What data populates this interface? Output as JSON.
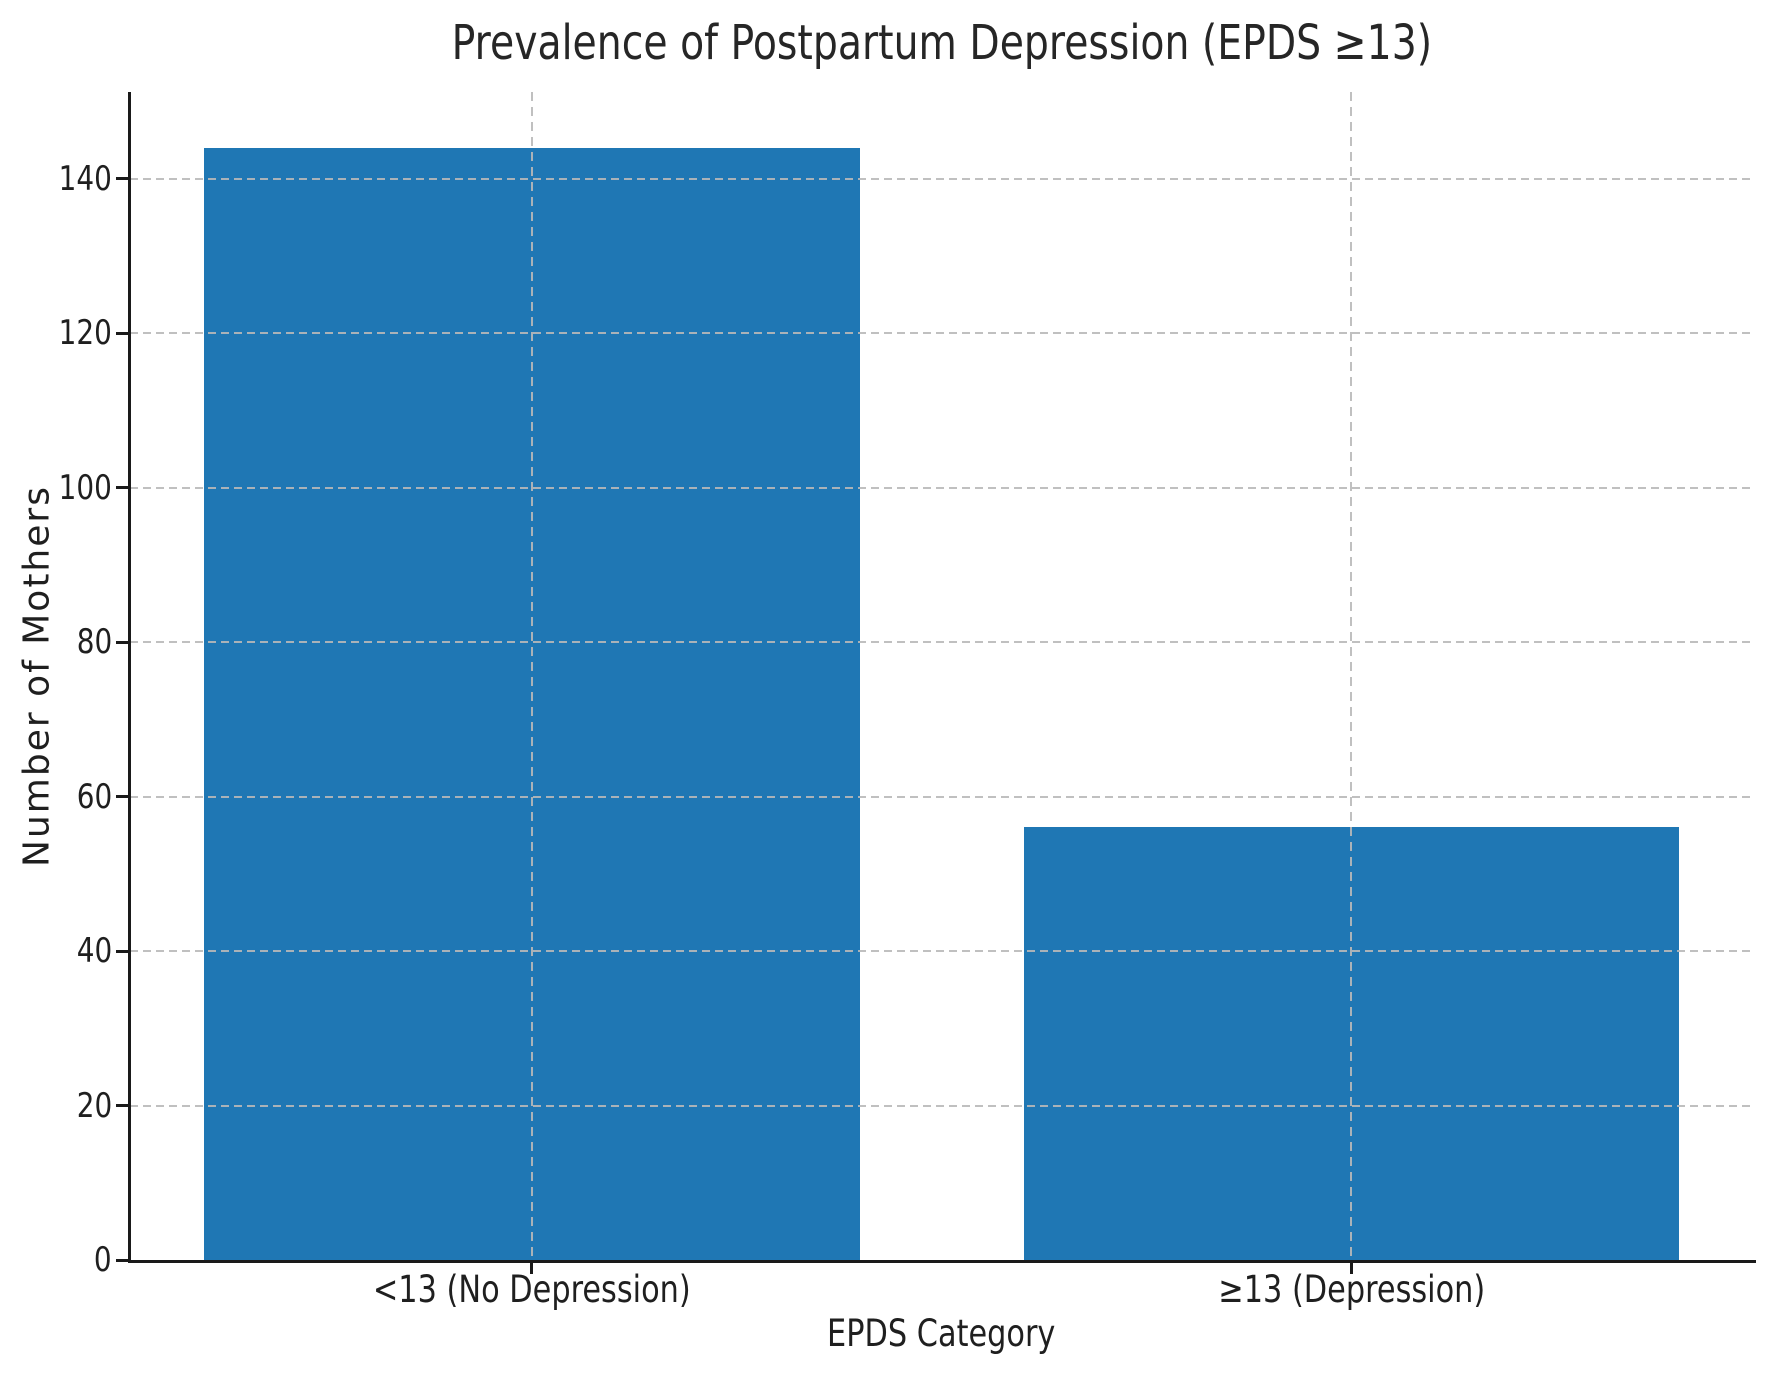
{
  "chart_data": {
    "type": "bar",
    "title": "Prevalence of Postpartum Depression (EPDS ≥13)",
    "xlabel": "EPDS Category",
    "ylabel": "Number of Mothers",
    "categories": [
      "<13 (No Depression)",
      "≥13 (Depression)"
    ],
    "values": [
      144,
      56
    ],
    "yticks": [
      0,
      20,
      40,
      60,
      80,
      100,
      120,
      140
    ],
    "ylim": [
      0,
      151.2
    ],
    "xlim": [
      -0.49,
      1.49
    ],
    "bar_width_units": 0.8,
    "bar_color": "#1f77b4",
    "grid": {
      "horizontal": true,
      "vertical_at_categories": true,
      "line_style": "dashed",
      "color": "#bdbdbd",
      "drawn_over_bars": true
    },
    "legend": "none",
    "spine_color": "#1a1a1a",
    "text_color": "#1f1f1f",
    "background_color": "#ffffff"
  }
}
